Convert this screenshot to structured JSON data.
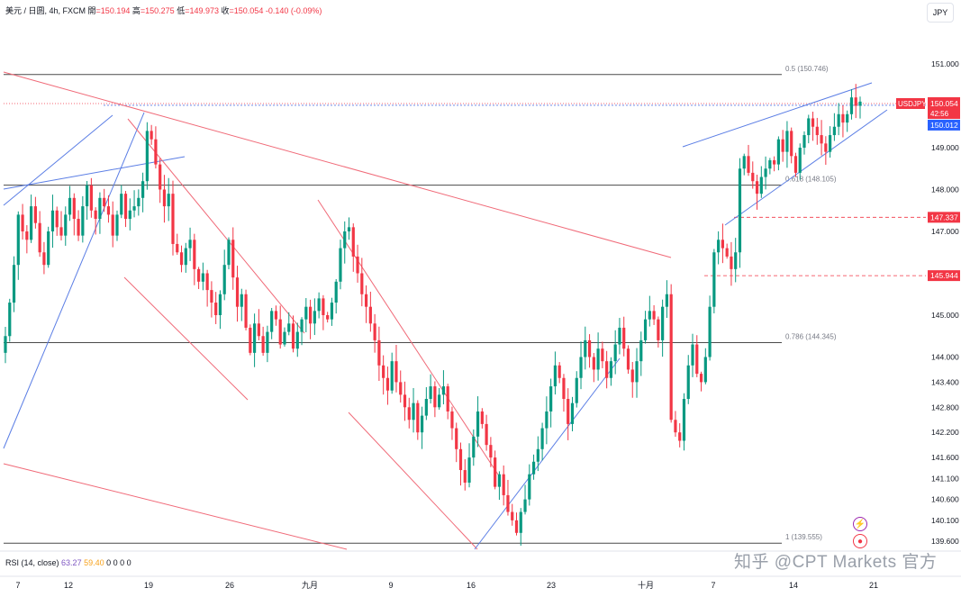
{
  "header": {
    "symbol": "美元 / 日圆, 4h, FXCM",
    "open_label": "開",
    "open": "=150.194",
    "high_label": "高",
    "high": "=150.275",
    "low_label": "低",
    "low": "=149.973",
    "close_label": "收",
    "close": "=150.054",
    "change": "-0.140 (-0.09%)"
  },
  "currency_button": "JPY",
  "rsi": {
    "label": "RSI (14, close)",
    "value1": "63.27",
    "value2": "59.40",
    "extra": "0 0 0 0"
  },
  "watermark": "知乎 @CPT Markets 官方",
  "colors": {
    "up": "#089981",
    "down": "#f23645",
    "trend_blue": "#5b7ee5",
    "trend_red": "#f06a78",
    "grid_line": "#4a4a4a"
  },
  "chart_data": {
    "type": "candlestick",
    "symbol": "USDJPY",
    "timeframe": "4h",
    "ylim": [
      139.5,
      152.0
    ],
    "y_ticks": [
      {
        "value": 151.0,
        "label": "151.000"
      },
      {
        "value": 149.0,
        "label": "149.000"
      },
      {
        "value": 148.0,
        "label": "148.000"
      },
      {
        "value": 147.0,
        "label": "147.000"
      },
      {
        "value": 145.0,
        "label": "145.000"
      },
      {
        "value": 144.0,
        "label": "144.000"
      },
      {
        "value": 143.4,
        "label": "143.400"
      },
      {
        "value": 142.8,
        "label": "142.800"
      },
      {
        "value": 142.2,
        "label": "142.200"
      },
      {
        "value": 141.6,
        "label": "141.600"
      },
      {
        "value": 141.1,
        "label": "141.100"
      },
      {
        "value": 140.6,
        "label": "140.600"
      },
      {
        "value": 140.1,
        "label": "140.100"
      },
      {
        "value": 139.6,
        "label": "139.600"
      }
    ],
    "x_ticks": [
      "7",
      "12",
      "19",
      "26",
      "九月",
      "9",
      "16",
      "23",
      "十月",
      "7",
      "14",
      "21"
    ],
    "price_tags": [
      {
        "value": 150.054,
        "label": "150.054",
        "sub": "42:56",
        "kind": "symbol",
        "name": "USDJPY"
      },
      {
        "value": 150.012,
        "label": "150.012",
        "kind": "blue"
      },
      {
        "value": 147.337,
        "label": "147.337",
        "kind": "red"
      },
      {
        "value": 145.944,
        "label": "145.944",
        "kind": "red"
      }
    ],
    "fib_levels": [
      {
        "value": 150.746,
        "label": "0.5 (150.746)"
      },
      {
        "value": 148.105,
        "label": "0.618 (148.105)"
      },
      {
        "value": 144.345,
        "label": "0.786 (144.345)"
      },
      {
        "value": 139.555,
        "label": "1 (139.555)"
      }
    ],
    "closes": [
      144.5,
      145.3,
      146.2,
      147.4,
      147.0,
      146.8,
      147.6,
      147.2,
      146.5,
      146.2,
      147.0,
      147.5,
      147.1,
      146.9,
      147.4,
      147.8,
      147.3,
      146.9,
      147.6,
      148.1,
      147.5,
      147.3,
      147.8,
      147.6,
      147.4,
      146.9,
      147.4,
      147.9,
      147.3,
      147.5,
      147.6,
      147.8,
      148.2,
      149.4,
      149.2,
      148.6,
      148.0,
      147.6,
      147.9,
      146.7,
      146.5,
      146.2,
      146.6,
      146.8,
      146.1,
      145.8,
      146.0,
      145.6,
      145.3,
      145.0,
      145.5,
      146.2,
      146.8,
      145.9,
      145.2,
      145.5,
      144.7,
      144.1,
      144.8,
      144.5,
      144.1,
      144.6,
      145.1,
      144.9,
      144.3,
      144.6,
      144.8,
      144.2,
      144.6,
      144.9,
      145.2,
      144.8,
      145.1,
      145.4,
      145.0,
      144.9,
      145.3,
      145.8,
      146.6,
      147.0,
      147.1,
      146.4,
      146.0,
      145.5,
      145.2,
      144.8,
      144.4,
      143.8,
      143.5,
      143.2,
      143.9,
      143.4,
      143.1,
      142.8,
      142.5,
      142.9,
      142.2,
      142.6,
      143.0,
      143.3,
      142.8,
      143.1,
      143.3,
      142.7,
      142.3,
      141.8,
      141.3,
      141.0,
      141.6,
      142.1,
      142.7,
      142.4,
      141.9,
      141.6,
      140.9,
      141.2,
      140.7,
      140.3,
      140.1,
      139.8,
      140.3,
      140.6,
      141.2,
      141.5,
      141.8,
      142.3,
      142.7,
      143.3,
      143.8,
      143.5,
      143.0,
      142.4,
      142.9,
      143.5,
      144.0,
      144.4,
      144.0,
      143.7,
      144.2,
      143.9,
      143.5,
      143.9,
      144.3,
      144.7,
      144.2,
      143.7,
      143.4,
      143.9,
      144.4,
      144.9,
      145.1,
      144.9,
      144.4,
      145.2,
      145.5,
      142.5,
      142.2,
      142.0,
      143.0,
      143.8,
      144.3,
      143.6,
      143.4,
      144.0,
      145.2,
      146.5,
      146.8,
      146.6,
      146.4,
      146.1,
      146.5,
      148.5,
      148.8,
      148.4,
      148.2,
      147.9,
      148.3,
      148.5,
      148.7,
      148.6,
      149.2,
      148.9,
      149.4,
      148.8,
      148.4,
      149.0,
      149.3,
      149.7,
      149.5,
      149.3,
      149.1,
      148.9,
      149.3,
      149.5,
      149.8,
      149.6,
      149.8,
      150.2,
      150.0,
      150.1
    ]
  }
}
